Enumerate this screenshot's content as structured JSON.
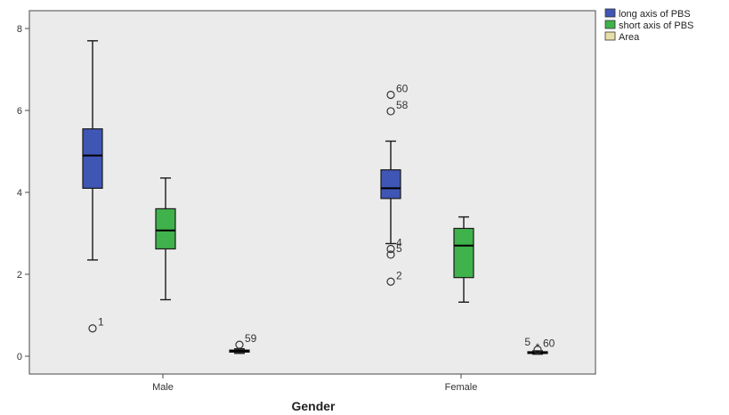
{
  "chart_data": {
    "type": "boxplot",
    "title": "",
    "xlabel": "Gender",
    "ylabel": "",
    "ylim": [
      0,
      8
    ],
    "yticks": [
      0,
      2,
      4,
      6,
      8
    ],
    "grid": false,
    "legend_position": "top-right",
    "categories": [
      "Male",
      "Female"
    ],
    "series": [
      {
        "name": "long axis of PBS",
        "color": "#3f56b5",
        "boxes": [
          {
            "category": "Male",
            "whisker_low": 2.35,
            "q1": 4.1,
            "median": 4.9,
            "q3": 5.55,
            "whisker_high": 7.7,
            "outliers": [
              {
                "value": 0.68,
                "label": "1",
                "marker": "circle"
              }
            ]
          },
          {
            "category": "Female",
            "whisker_low": 2.75,
            "q1": 3.85,
            "median": 4.1,
            "q3": 4.55,
            "whisker_high": 5.25,
            "outliers": [
              {
                "value": 6.38,
                "label": "60",
                "marker": "circle"
              },
              {
                "value": 5.98,
                "label": "58",
                "marker": "circle"
              },
              {
                "value": 2.62,
                "label": "4",
                "marker": "circle"
              },
              {
                "value": 2.48,
                "label": "5",
                "marker": "circle"
              },
              {
                "value": 1.82,
                "label": "2",
                "marker": "circle"
              }
            ]
          }
        ]
      },
      {
        "name": "short axis of PBS",
        "color": "#3fb24b",
        "boxes": [
          {
            "category": "Male",
            "whisker_low": 1.38,
            "q1": 2.62,
            "median": 3.07,
            "q3": 3.6,
            "whisker_high": 4.35,
            "outliers": []
          },
          {
            "category": "Female",
            "whisker_low": 1.32,
            "q1": 1.92,
            "median": 2.7,
            "q3": 3.12,
            "whisker_high": 3.4,
            "outliers": []
          }
        ]
      },
      {
        "name": "Area",
        "color": "#e8dfa8",
        "boxes": [
          {
            "category": "Male",
            "whisker_low": 0.07,
            "q1": 0.1,
            "median": 0.13,
            "q3": 0.15,
            "whisker_high": 0.18,
            "outliers": [
              {
                "value": 0.28,
                "label": "59",
                "marker": "circle"
              }
            ]
          },
          {
            "category": "Female",
            "whisker_low": 0.05,
            "q1": 0.07,
            "median": 0.09,
            "q3": 0.11,
            "whisker_high": 0.13,
            "outliers": [
              {
                "value": 0.22,
                "label": "5",
                "marker": "star"
              },
              {
                "value": 0.16,
                "label": "60",
                "marker": "circle"
              }
            ]
          }
        ]
      }
    ]
  }
}
